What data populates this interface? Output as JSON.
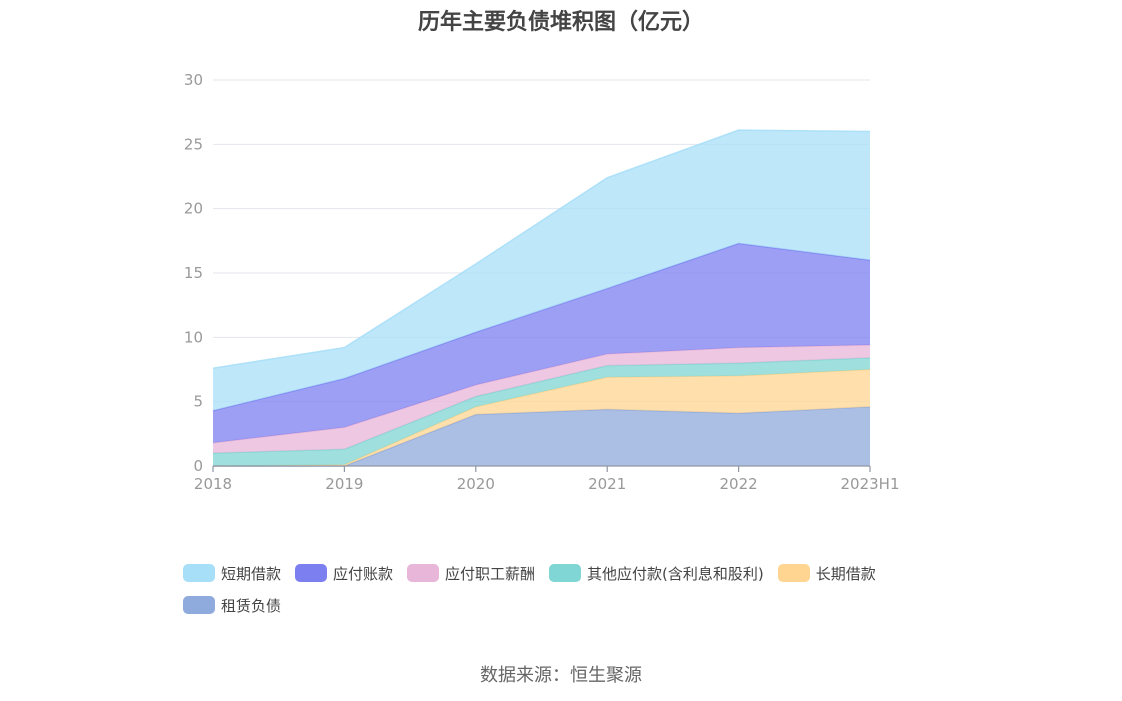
{
  "chart_data": {
    "type": "area",
    "stacked": true,
    "title": "历年主要负债堆积图（亿元）",
    "categories": [
      "2018",
      "2019",
      "2020",
      "2021",
      "2022",
      "2023H1"
    ],
    "ylim": [
      0,
      30
    ],
    "yticks": [
      0,
      5,
      10,
      15,
      20,
      25,
      30
    ],
    "grid": true,
    "legend_position": "bottom",
    "series": [
      {
        "name": "租赁负债",
        "color": "#8faadc",
        "values": [
          0,
          0,
          4.0,
          4.4,
          4.1,
          4.6
        ]
      },
      {
        "name": "长期借款",
        "color": "#ffd591",
        "values": [
          0,
          0.1,
          0.6,
          2.5,
          2.9,
          2.9
        ]
      },
      {
        "name": "其他应付款(含利息和股利)",
        "color": "#7fd6d4",
        "values": [
          1.0,
          1.2,
          0.8,
          0.9,
          1.0,
          0.9
        ]
      },
      {
        "name": "应付职工薪酬",
        "color": "#e8b6d8",
        "values": [
          0.8,
          1.7,
          0.9,
          0.9,
          1.2,
          1.0
        ]
      },
      {
        "name": "应付账款",
        "color": "#7b7ff0",
        "values": [
          2.5,
          3.8,
          4.1,
          5.1,
          8.1,
          6.6
        ]
      },
      {
        "name": "短期借款",
        "color": "#a8dff8",
        "values": [
          3.3,
          2.4,
          5.3,
          8.6,
          8.8,
          10.0
        ]
      }
    ],
    "legend_order": [
      "短期借款",
      "应付账款",
      "应付职工薪酬",
      "其他应付款(含利息和股利)",
      "长期借款",
      "租赁负债"
    ]
  },
  "footer": {
    "source": "数据来源：恒生聚源"
  }
}
